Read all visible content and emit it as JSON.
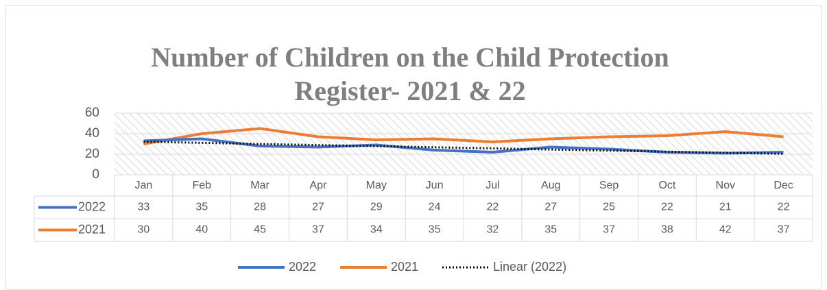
{
  "chart_data": {
    "type": "line",
    "title": [
      "Number of Children on the Child Protection",
      "Register- 2021 & 22"
    ],
    "categories": [
      "Jan",
      "Feb",
      "Mar",
      "Apr",
      "May",
      "Jun",
      "Jul",
      "Aug",
      "Sep",
      "Oct",
      "Nov",
      "Dec"
    ],
    "series": [
      {
        "name": "2022",
        "color": "#4472c4",
        "style": "solid",
        "in_table": true,
        "values": [
          33,
          35,
          28,
          27,
          29,
          24,
          22,
          27,
          25,
          22,
          21,
          22
        ]
      },
      {
        "name": "2021",
        "color": "#ed7d31",
        "style": "solid",
        "in_table": true,
        "values": [
          30,
          40,
          45,
          37,
          34,
          35,
          32,
          35,
          37,
          38,
          42,
          37
        ]
      },
      {
        "name": "Linear (2022)",
        "color": "#000000",
        "style": "dotted",
        "in_table": false,
        "values": [
          32.2,
          31.1,
          30.0,
          28.9,
          27.9,
          26.8,
          25.7,
          24.6,
          23.6,
          22.5,
          21.4,
          20.4
        ]
      }
    ],
    "ylim": [
      0,
      60
    ],
    "yticks": [
      0,
      20,
      40,
      60
    ],
    "grid": true,
    "legend": "bottom"
  }
}
